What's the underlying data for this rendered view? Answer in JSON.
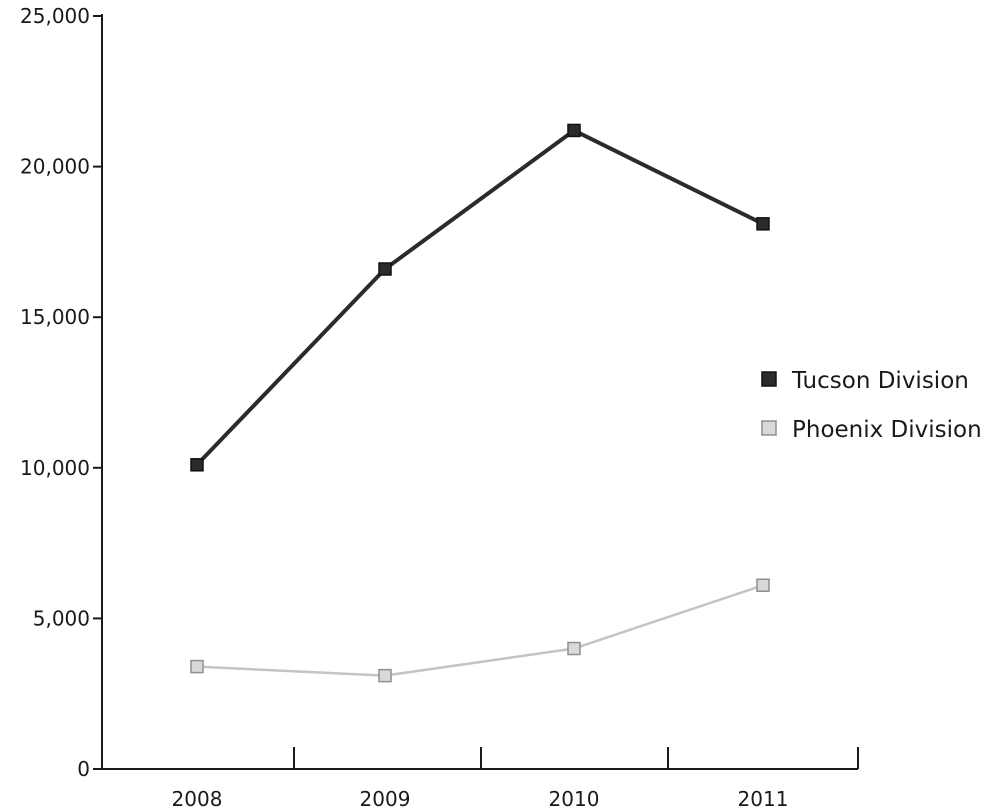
{
  "chart_data": {
    "type": "line",
    "title": "",
    "xlabel": "",
    "ylabel": "",
    "categories": [
      "2008",
      "2009",
      "2010",
      "2011"
    ],
    "ylim": [
      0,
      25000
    ],
    "y_ticks": [
      0,
      5000,
      10000,
      15000,
      20000,
      25000
    ],
    "y_tick_labels": [
      "0",
      "5,000",
      "10,000",
      "15,000",
      "20,000",
      "25,000"
    ],
    "grid": false,
    "legend_position": "right",
    "series": [
      {
        "name": "Tucson Division",
        "values": [
          10100,
          16600,
          21200,
          18100
        ],
        "line_color": "#2b2b2b",
        "marker_fill": "#2b2b2b",
        "marker_stroke": "#111111"
      },
      {
        "name": "Phoenix Division",
        "values": [
          3400,
          3100,
          4000,
          6100
        ],
        "line_color": "#c4c4c4",
        "marker_fill": "#d9d9d9",
        "marker_stroke": "#8f8f8f"
      }
    ]
  }
}
